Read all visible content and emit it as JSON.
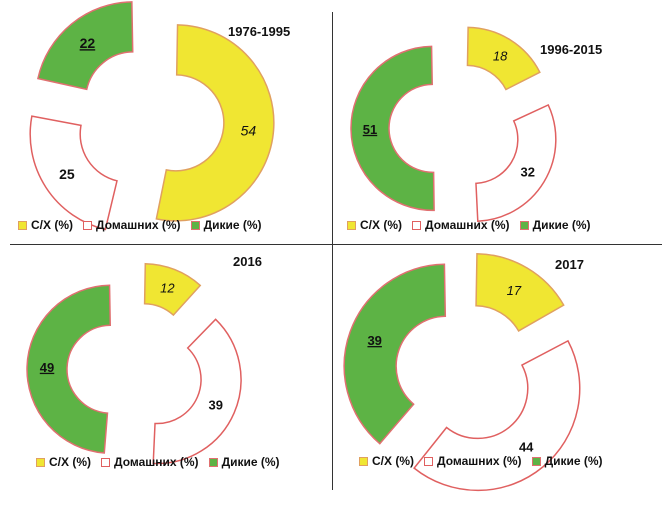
{
  "colors": {
    "agricultural": "#f0e632",
    "agricultural_stroke": "#e0a060",
    "domestic": "#ffffff",
    "domestic_stroke": "#e06060",
    "wild": "#5db345",
    "wild_stroke": "#e07070",
    "divider": "#333333"
  },
  "legend": {
    "agricultural": "С/Х  (%)",
    "domestic": "Домашних (%)",
    "wild": "Дикие (%)"
  },
  "chart_data": [
    {
      "type": "pie",
      "title": "1976-1995",
      "categories": [
        "С/Х  (%)",
        "Домашних (%)",
        "Дикие (%)"
      ],
      "values": [
        54,
        25,
        22
      ],
      "labels": [
        "54",
        "25",
        "22"
      ]
    },
    {
      "type": "pie",
      "title": "1996-2015",
      "categories": [
        "С/Х  (%)",
        "Домашних (%)",
        "Дикие (%)"
      ],
      "values": [
        18,
        32,
        51
      ],
      "labels": [
        "18",
        "32",
        "51"
      ]
    },
    {
      "type": "pie",
      "title": "2016",
      "categories": [
        "С/Х  (%)",
        "Домашних (%)",
        "Дикие (%)"
      ],
      "values": [
        12,
        39,
        49
      ],
      "labels": [
        "12",
        "39",
        "49"
      ]
    },
    {
      "type": "pie",
      "title": "2017",
      "categories": [
        "С/Х  (%)",
        "Домашних (%)",
        "Дикие (%)"
      ],
      "values": [
        17,
        44,
        39
      ],
      "labels": [
        "17",
        "44",
        "39"
      ]
    }
  ]
}
